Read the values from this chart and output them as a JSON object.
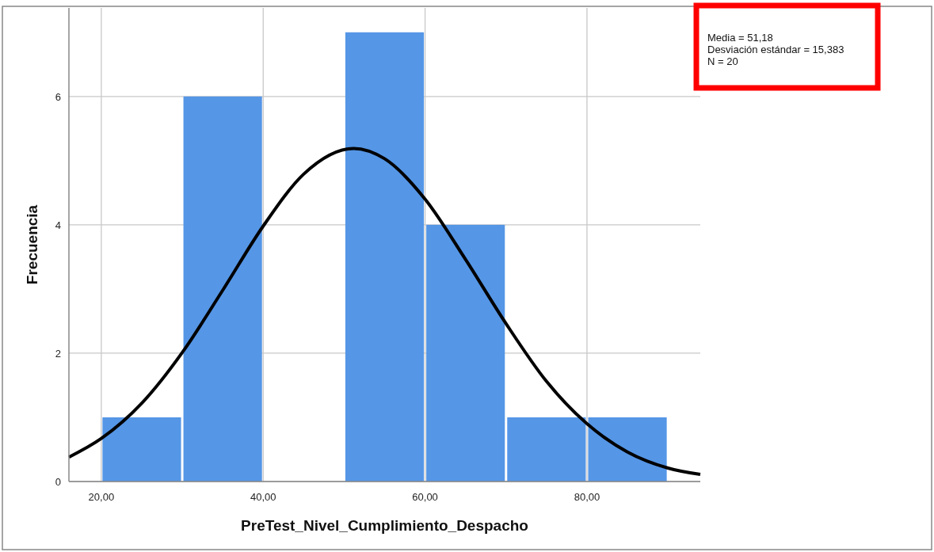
{
  "chart_data": {
    "type": "histogram",
    "xlabel": "PreTest_Nivel_Cumplimiento_Despacho",
    "ylabel": "Frecuencia",
    "bins": [
      20,
      30,
      40,
      50,
      60,
      70,
      80,
      90
    ],
    "series": [
      {
        "color": "#5596e6",
        "values": [
          1,
          6,
          0,
          7,
          4,
          1,
          1
        ]
      },
      {
        "type": "line",
        "color": "#000000",
        "x": [
          16,
          20,
          25,
          30,
          35,
          40,
          45,
          51.18,
          55,
          60,
          65,
          70,
          75,
          80,
          85,
          90,
          94
        ],
        "values": [
          0.38,
          0.67,
          1.22,
          2.01,
          2.98,
          3.98,
          4.79,
          5.19,
          5.03,
          4.4,
          3.46,
          2.46,
          1.56,
          0.9,
          0.46,
          0.21,
          0.11
        ]
      }
    ],
    "xlim": [
      16,
      94
    ],
    "ylim": [
      0,
      7.38
    ],
    "xticks": [
      {
        "value": 20,
        "label": "20,00"
      },
      {
        "value": 40,
        "label": "40,00"
      },
      {
        "value": 60,
        "label": "60,00"
      },
      {
        "value": 80,
        "label": "80,00"
      }
    ],
    "yticks": [
      0,
      2,
      4,
      6
    ],
    "grid": true,
    "annotations": [
      "Media = 51,18",
      "Desviación estándar = 15,383",
      "N = 20"
    ]
  }
}
